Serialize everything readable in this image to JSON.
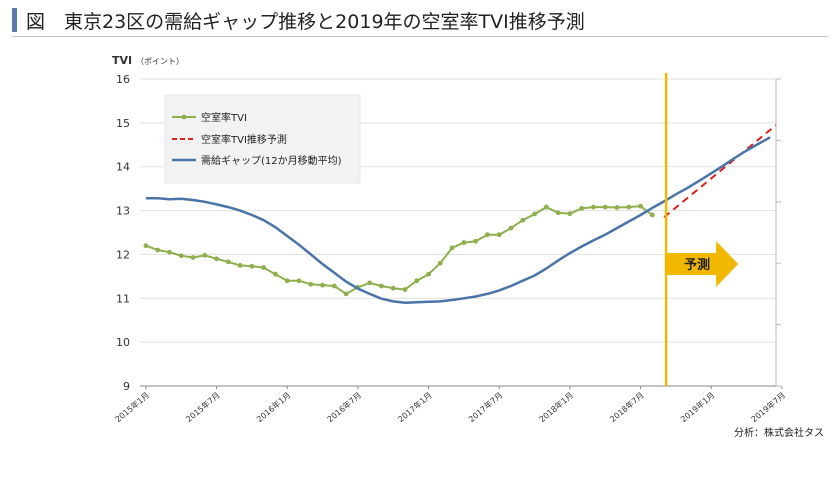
{
  "header": {
    "title": "図　東京23区の需給ギャップ推移と2019年の空室率TVI推移予測"
  },
  "source": "分析：株式会社タス",
  "chart_data": {
    "type": "line",
    "ylabel": "TVI",
    "yunit": "（ポイント）",
    "ylim": [
      9,
      16
    ],
    "yticks": [
      9,
      10,
      11,
      12,
      13,
      14,
      15,
      16
    ],
    "xlabels": [
      "2015年1月",
      "2015年7月",
      "2016年1月",
      "2016年7月",
      "2017年1月",
      "2017年7月",
      "2018年1月",
      "2018年7月",
      "2019年1月",
      "2019年7月"
    ],
    "x_months": 54,
    "forecast_label": "予測",
    "forecast_start": "2018年9月",
    "legend": [
      "空室率TVI",
      "空室率TVI推移予測",
      "需給ギャップ(12か月移動平均)"
    ],
    "series": [
      {
        "name": "空室率TVI",
        "color": "#8db04c",
        "style": "solid-markers",
        "start_month": 0,
        "values": [
          12.2,
          12.1,
          12.05,
          11.97,
          11.93,
          11.98,
          11.9,
          11.83,
          11.75,
          11.73,
          11.7,
          11.55,
          11.4,
          11.4,
          11.32,
          11.3,
          11.28,
          11.1,
          11.25,
          11.35,
          11.28,
          11.23,
          11.2,
          11.4,
          11.55,
          11.8,
          12.15,
          12.27,
          12.3,
          12.45,
          12.45,
          12.6,
          12.78,
          12.92,
          13.08,
          12.95,
          12.93,
          13.05,
          13.08,
          13.08,
          13.07,
          13.08,
          13.1,
          12.9
        ]
      },
      {
        "name": "空室率TVI推移予測",
        "color": "#e0201d",
        "style": "dashed",
        "start_month": 44,
        "values": [
          12.85,
          14.95
        ]
      },
      {
        "name": "需給ギャップ(12か月移動平均)",
        "color": "#4a74a8",
        "style": "solid",
        "start_month": 0,
        "values": [
          13.28,
          13.28,
          13.26,
          13.27,
          13.24,
          13.2,
          13.14,
          13.08,
          13.0,
          12.9,
          12.78,
          12.62,
          12.42,
          12.22,
          12.0,
          11.78,
          11.58,
          11.38,
          11.22,
          11.1,
          10.99,
          10.93,
          10.9,
          10.91,
          10.92,
          10.93,
          10.96,
          11.0,
          11.04,
          11.1,
          11.18,
          11.28,
          11.4,
          11.52,
          11.68,
          11.86,
          12.03,
          12.18,
          12.32,
          12.45,
          12.6,
          12.75,
          12.9,
          13.06,
          13.21,
          13.37,
          13.52,
          13.68,
          13.85,
          14.02,
          14.2,
          14.37,
          14.52,
          14.67
        ]
      }
    ]
  }
}
